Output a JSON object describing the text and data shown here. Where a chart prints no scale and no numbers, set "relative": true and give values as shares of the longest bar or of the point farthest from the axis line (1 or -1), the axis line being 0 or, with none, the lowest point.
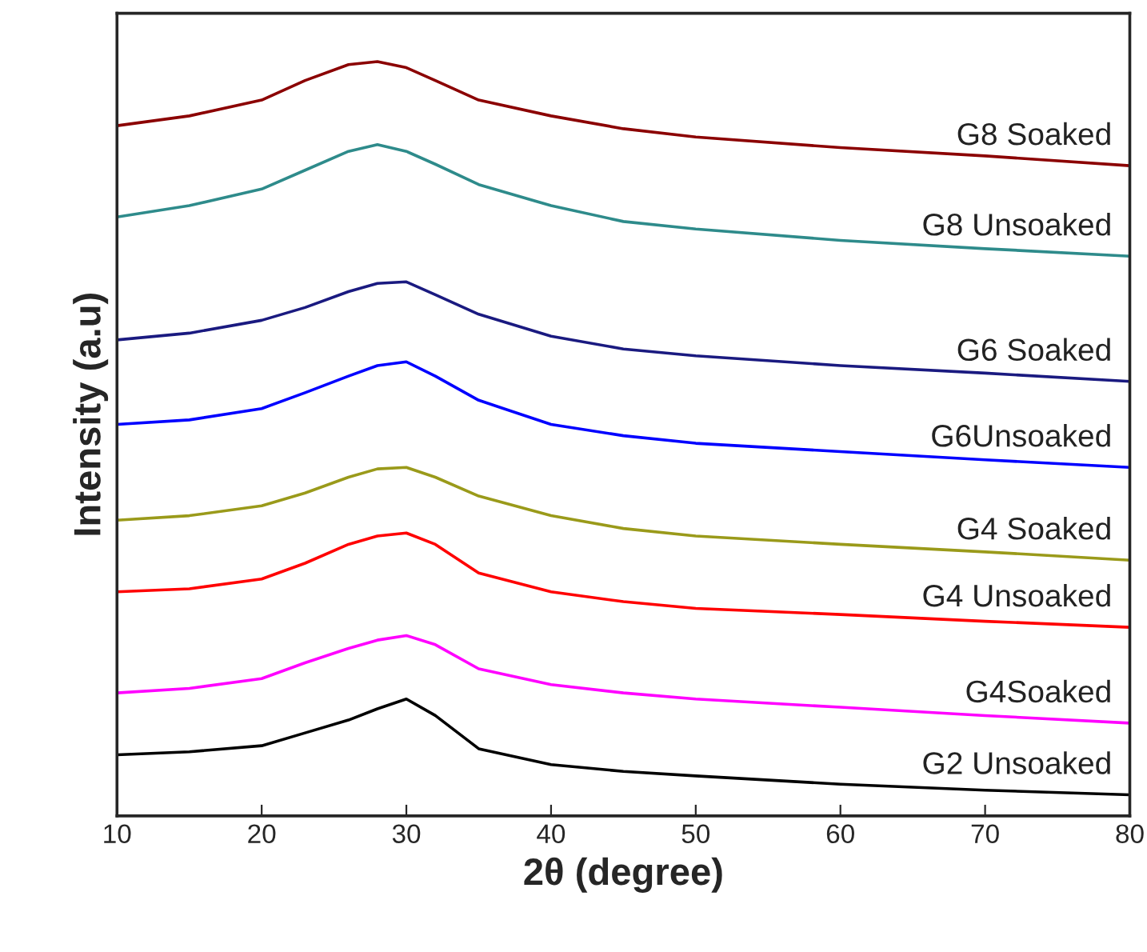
{
  "chart_data": {
    "type": "line",
    "xlabel": "2θ (degree)",
    "ylabel": "Intensity (a.u)",
    "relative": true,
    "xlim": [
      10,
      80
    ],
    "xticks": [
      10,
      20,
      30,
      40,
      50,
      60,
      70,
      80
    ],
    "tick_labels": "x",
    "legend": false,
    "grid": false,
    "marker": "none",
    "line_style": "solid",
    "x": [
      10,
      15,
      20,
      23,
      26,
      28,
      30,
      32,
      35,
      40,
      45,
      50,
      60,
      70,
      80
    ],
    "series": [
      {
        "name": "G8 Soaked",
        "color": "#8b0000",
        "values": [
          0.915,
          0.928,
          0.949,
          0.975,
          0.996,
          1.0,
          0.992,
          0.975,
          0.949,
          0.928,
          0.911,
          0.9,
          0.886,
          0.875,
          0.862
        ]
      },
      {
        "name": "G8 Unsoaked",
        "color": "#2e8b8b",
        "values": [
          0.794,
          0.809,
          0.831,
          0.856,
          0.881,
          0.89,
          0.881,
          0.864,
          0.837,
          0.809,
          0.788,
          0.778,
          0.763,
          0.752,
          0.742
        ]
      },
      {
        "name": "G6 Soaked",
        "color": "#1a1a80",
        "values": [
          0.631,
          0.64,
          0.657,
          0.674,
          0.695,
          0.706,
          0.708,
          0.691,
          0.665,
          0.636,
          0.619,
          0.61,
          0.597,
          0.587,
          0.576
        ]
      },
      {
        "name": "G6Unsoaked",
        "color": "#0000ff",
        "values": [
          0.519,
          0.525,
          0.54,
          0.561,
          0.583,
          0.597,
          0.602,
          0.583,
          0.551,
          0.519,
          0.504,
          0.494,
          0.483,
          0.472,
          0.462
        ]
      },
      {
        "name": "G4 Soaked",
        "color": "#9a9a1a",
        "values": [
          0.392,
          0.398,
          0.411,
          0.428,
          0.449,
          0.46,
          0.462,
          0.449,
          0.424,
          0.398,
          0.381,
          0.371,
          0.36,
          0.35,
          0.339
        ]
      },
      {
        "name": "G4 Unsoaked",
        "color": "#ff0000",
        "values": [
          0.297,
          0.301,
          0.314,
          0.335,
          0.36,
          0.371,
          0.375,
          0.36,
          0.322,
          0.297,
          0.284,
          0.275,
          0.267,
          0.258,
          0.25
        ]
      },
      {
        "name": "G4Soaked",
        "color": "#ff00ff",
        "values": [
          0.163,
          0.169,
          0.182,
          0.203,
          0.222,
          0.233,
          0.239,
          0.227,
          0.195,
          0.174,
          0.163,
          0.155,
          0.144,
          0.133,
          0.123
        ]
      },
      {
        "name": "G2 Unsoaked",
        "color": "#000000",
        "values": [
          0.081,
          0.085,
          0.093,
          0.11,
          0.127,
          0.142,
          0.155,
          0.133,
          0.089,
          0.068,
          0.059,
          0.053,
          0.042,
          0.034,
          0.028
        ]
      }
    ]
  }
}
